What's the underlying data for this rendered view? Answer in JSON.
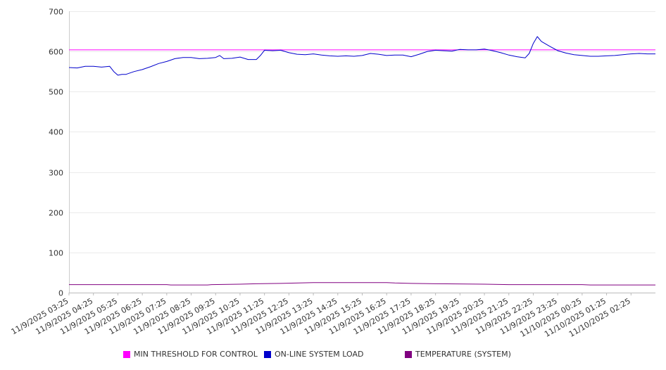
{
  "chart_data": {
    "type": "line",
    "ylim": [
      0,
      700
    ],
    "yticks": [
      0,
      100,
      200,
      300,
      400,
      500,
      600,
      700
    ],
    "grid": true,
    "legend_position": "bottom",
    "x_tick_labels": [
      "11/9/2025 03:25",
      "11/9/2025 04:25",
      "11/9/2025 05:25",
      "11/9/2025 06:25",
      "11/9/2025 07:25",
      "11/9/2025 08:25",
      "11/9/2025 09:25",
      "11/9/2025 10:25",
      "11/9/2025 11:25",
      "11/9/2025 12:25",
      "11/9/2025 13:25",
      "11/9/2025 14:25",
      "11/9/2025 15:25",
      "11/9/2025 16:25",
      "11/9/2025 17:25",
      "11/9/2025 18:25",
      "11/9/2025 19:25",
      "11/9/2025 20:25",
      "11/9/2025 21:25",
      "11/9/2025 22:25",
      "11/9/2025 23:25",
      "11/10/2025 00:25",
      "11/10/2025 01:25",
      "11/10/2025 02:25"
    ],
    "x_start": "11/9/2025 03:25",
    "x_end": "11/10/2025 03:25",
    "series": [
      {
        "name": "MIN THRESHOLD FOR CONTROL",
        "color": "#ff00ff",
        "points": [
          [
            "11/9/2025 03:25",
            604
          ],
          [
            "11/10/2025 03:25",
            604
          ]
        ]
      },
      {
        "name": "ON-LINE SYSTEM LOAD",
        "color": "#0000cc",
        "points": [
          [
            "11/9/2025 03:25",
            560
          ],
          [
            "11/9/2025 03:45",
            559
          ],
          [
            "11/9/2025 04:05",
            563
          ],
          [
            "11/9/2025 04:25",
            563
          ],
          [
            "11/9/2025 04:45",
            561
          ],
          [
            "11/9/2025 05:05",
            563
          ],
          [
            "11/9/2025 05:15",
            550
          ],
          [
            "11/9/2025 05:25",
            541
          ],
          [
            "11/9/2025 05:35",
            543
          ],
          [
            "11/9/2025 05:45",
            543
          ],
          [
            "11/9/2025 06:05",
            550
          ],
          [
            "11/9/2025 06:25",
            555
          ],
          [
            "11/9/2025 06:45",
            562
          ],
          [
            "11/9/2025 07:05",
            570
          ],
          [
            "11/9/2025 07:25",
            575
          ],
          [
            "11/9/2025 07:45",
            582
          ],
          [
            "11/9/2025 08:05",
            585
          ],
          [
            "11/9/2025 08:25",
            585
          ],
          [
            "11/9/2025 08:45",
            582
          ],
          [
            "11/9/2025 09:05",
            583
          ],
          [
            "11/9/2025 09:25",
            585
          ],
          [
            "11/9/2025 09:35",
            590
          ],
          [
            "11/9/2025 09:45",
            582
          ],
          [
            "11/9/2025 10:05",
            583
          ],
          [
            "11/9/2025 10:25",
            586
          ],
          [
            "11/9/2025 10:45",
            580
          ],
          [
            "11/9/2025 11:05",
            580
          ],
          [
            "11/9/2025 11:15",
            590
          ],
          [
            "11/9/2025 11:25",
            603
          ],
          [
            "11/9/2025 11:45",
            602
          ],
          [
            "11/9/2025 12:05",
            603
          ],
          [
            "11/9/2025 12:25",
            597
          ],
          [
            "11/9/2025 12:45",
            593
          ],
          [
            "11/9/2025 13:05",
            592
          ],
          [
            "11/9/2025 13:25",
            594
          ],
          [
            "11/9/2025 13:45",
            591
          ],
          [
            "11/9/2025 14:05",
            589
          ],
          [
            "11/9/2025 14:25",
            588
          ],
          [
            "11/9/2025 14:45",
            589
          ],
          [
            "11/9/2025 15:05",
            588
          ],
          [
            "11/9/2025 15:25",
            590
          ],
          [
            "11/9/2025 15:45",
            595
          ],
          [
            "11/9/2025 16:05",
            593
          ],
          [
            "11/9/2025 16:25",
            590
          ],
          [
            "11/9/2025 16:45",
            591
          ],
          [
            "11/9/2025 17:05",
            591
          ],
          [
            "11/9/2025 17:25",
            587
          ],
          [
            "11/9/2025 17:45",
            593
          ],
          [
            "11/9/2025 18:05",
            600
          ],
          [
            "11/9/2025 18:25",
            603
          ],
          [
            "11/9/2025 18:45",
            602
          ],
          [
            "11/9/2025 19:05",
            601
          ],
          [
            "11/9/2025 19:25",
            605
          ],
          [
            "11/9/2025 19:45",
            604
          ],
          [
            "11/9/2025 20:05",
            604
          ],
          [
            "11/9/2025 20:25",
            606
          ],
          [
            "11/9/2025 20:45",
            602
          ],
          [
            "11/9/2025 21:05",
            597
          ],
          [
            "11/9/2025 21:25",
            591
          ],
          [
            "11/9/2025 21:45",
            587
          ],
          [
            "11/9/2025 22:05",
            584
          ],
          [
            "11/9/2025 22:15",
            595
          ],
          [
            "11/9/2025 22:25",
            620
          ],
          [
            "11/9/2025 22:35",
            637
          ],
          [
            "11/9/2025 22:45",
            625
          ],
          [
            "11/9/2025 23:05",
            613
          ],
          [
            "11/9/2025 23:25",
            602
          ],
          [
            "11/9/2025 23:45",
            596
          ],
          [
            "11/10/2025 00:05",
            592
          ],
          [
            "11/10/2025 00:25",
            590
          ],
          [
            "11/10/2025 00:45",
            588
          ],
          [
            "11/10/2025 01:05",
            588
          ],
          [
            "11/10/2025 01:25",
            589
          ],
          [
            "11/10/2025 01:45",
            590
          ],
          [
            "11/10/2025 02:05",
            592
          ],
          [
            "11/10/2025 02:25",
            594
          ],
          [
            "11/10/2025 02:45",
            595
          ],
          [
            "11/10/2025 03:05",
            594
          ],
          [
            "11/10/2025 03:25",
            594
          ]
        ]
      },
      {
        "name": "TEMPERATURE (SYSTEM)",
        "color": "#800080",
        "points": [
          [
            "11/9/2025 03:25",
            20
          ],
          [
            "11/9/2025 07:25",
            20
          ],
          [
            "11/9/2025 07:35",
            19
          ],
          [
            "11/9/2025 09:05",
            19
          ],
          [
            "11/9/2025 09:15",
            20
          ],
          [
            "11/9/2025 10:25",
            21
          ],
          [
            "11/9/2025 11:05",
            22
          ],
          [
            "11/9/2025 12:05",
            23
          ],
          [
            "11/9/2025 13:25",
            25
          ],
          [
            "11/9/2025 16:25",
            25
          ],
          [
            "11/9/2025 16:45",
            24
          ],
          [
            "11/9/2025 17:25",
            23
          ],
          [
            "11/9/2025 18:25",
            22
          ],
          [
            "11/9/2025 20:25",
            21
          ],
          [
            "11/9/2025 21:25",
            20
          ],
          [
            "11/10/2025 00:25",
            20
          ],
          [
            "11/10/2025 00:45",
            19
          ],
          [
            "11/10/2025 03:25",
            19
          ]
        ]
      }
    ]
  }
}
